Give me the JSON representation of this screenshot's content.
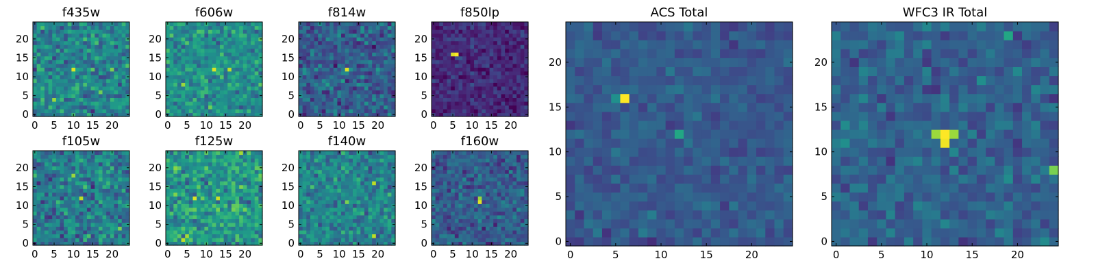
{
  "chart_data": [
    {
      "type": "heatmap",
      "title": "f435w",
      "xticks": [
        "0",
        "5",
        "10",
        "15",
        "20"
      ],
      "yticks": [
        "0",
        "5",
        "10",
        "15",
        "20"
      ],
      "grid_size": 25,
      "colormap": "viridis",
      "hotspots": [
        {
          "x": 10,
          "y": 12,
          "value": 0.95
        },
        {
          "x": 5,
          "y": 4,
          "value": 0.85
        },
        {
          "x": 20,
          "y": 12,
          "value": 0.8
        }
      ],
      "noise_mean": 0.45,
      "noise_spread": 0.35,
      "seed": 11
    },
    {
      "type": "heatmap",
      "title": "f606w",
      "xticks": [
        "0",
        "5",
        "10",
        "15",
        "20"
      ],
      "yticks": [
        "0",
        "5",
        "10",
        "15",
        "20"
      ],
      "grid_size": 25,
      "colormap": "viridis",
      "hotspots": [
        {
          "x": 12,
          "y": 12,
          "value": 0.95
        },
        {
          "x": 16,
          "y": 12,
          "value": 0.9
        },
        {
          "x": 4,
          "y": 8,
          "value": 0.85
        }
      ],
      "noise_mean": 0.5,
      "noise_spread": 0.3,
      "seed": 23
    },
    {
      "type": "heatmap",
      "title": "f814w",
      "xticks": [
        "0",
        "5",
        "10",
        "15",
        "20"
      ],
      "yticks": [
        "0",
        "5",
        "10",
        "15",
        "20"
      ],
      "grid_size": 25,
      "colormap": "viridis",
      "hotspots": [
        {
          "x": 12,
          "y": 12,
          "value": 0.95
        }
      ],
      "noise_mean": 0.3,
      "noise_spread": 0.3,
      "seed": 37
    },
    {
      "type": "heatmap",
      "title": "f850lp",
      "xticks": [
        "0",
        "5",
        "10",
        "15",
        "20"
      ],
      "yticks": [
        "0",
        "5",
        "10",
        "15",
        "20"
      ],
      "grid_size": 25,
      "colormap": "viridis",
      "hotspots": [
        {
          "x": 5,
          "y": 16,
          "value": 0.95
        },
        {
          "x": 6,
          "y": 16,
          "value": 1.0
        }
      ],
      "noise_mean": 0.12,
      "noise_spread": 0.18,
      "seed": 41
    },
    {
      "type": "heatmap",
      "title": "f105w",
      "xticks": [
        "0",
        "5",
        "10",
        "15",
        "20"
      ],
      "yticks": [
        "0",
        "5",
        "10",
        "15",
        "20"
      ],
      "grid_size": 25,
      "colormap": "viridis",
      "hotspots": [
        {
          "x": 12,
          "y": 12,
          "value": 0.9
        },
        {
          "x": 10,
          "y": 18,
          "value": 0.85
        },
        {
          "x": 22,
          "y": 4,
          "value": 0.8
        }
      ],
      "noise_mean": 0.42,
      "noise_spread": 0.35,
      "seed": 53
    },
    {
      "type": "heatmap",
      "title": "f125w",
      "xticks": [
        "0",
        "5",
        "10",
        "15",
        "20"
      ],
      "yticks": [
        "0",
        "5",
        "10",
        "15",
        "20"
      ],
      "grid_size": 25,
      "colormap": "viridis",
      "hotspots": [
        {
          "x": 7,
          "y": 12,
          "value": 0.95
        },
        {
          "x": 13,
          "y": 12,
          "value": 0.92
        },
        {
          "x": 4,
          "y": 1,
          "value": 0.9
        }
      ],
      "noise_mean": 0.55,
      "noise_spread": 0.35,
      "seed": 67
    },
    {
      "type": "heatmap",
      "title": "f140w",
      "xticks": [
        "0",
        "5",
        "10",
        "15",
        "20"
      ],
      "yticks": [
        "0",
        "5",
        "10",
        "15",
        "20"
      ],
      "grid_size": 25,
      "colormap": "viridis",
      "hotspots": [
        {
          "x": 19,
          "y": 16,
          "value": 0.9
        },
        {
          "x": 12,
          "y": 11,
          "value": 0.8
        },
        {
          "x": 19,
          "y": 2,
          "value": 0.9
        }
      ],
      "noise_mean": 0.45,
      "noise_spread": 0.3,
      "seed": 79
    },
    {
      "type": "heatmap",
      "title": "f160w",
      "xticks": [
        "0",
        "5",
        "10",
        "15",
        "20"
      ],
      "yticks": [
        "0",
        "5",
        "10",
        "15",
        "20"
      ],
      "grid_size": 25,
      "colormap": "viridis",
      "hotspots": [
        {
          "x": 12,
          "y": 11,
          "value": 0.95
        },
        {
          "x": 12,
          "y": 12,
          "value": 0.85
        }
      ],
      "noise_mean": 0.3,
      "noise_spread": 0.25,
      "seed": 83
    },
    {
      "type": "heatmap",
      "title": "ACS Total",
      "xticks": [
        "0",
        "5",
        "10",
        "15",
        "20"
      ],
      "yticks": [
        "0",
        "5",
        "10",
        "15",
        "20"
      ],
      "grid_size": 25,
      "colormap": "viridis",
      "hotspots": [
        {
          "x": 6,
          "y": 16,
          "value": 1.0
        },
        {
          "x": 5,
          "y": 16,
          "value": 0.5
        },
        {
          "x": 12,
          "y": 12,
          "value": 0.6
        }
      ],
      "noise_mean": 0.28,
      "noise_spread": 0.15,
      "seed": 97
    },
    {
      "type": "heatmap",
      "title": "WFC3 IR Total",
      "xticks": [
        "0",
        "5",
        "10",
        "15",
        "20"
      ],
      "yticks": [
        "0",
        "5",
        "10",
        "15",
        "20"
      ],
      "grid_size": 25,
      "colormap": "viridis",
      "hotspots": [
        {
          "x": 12,
          "y": 12,
          "value": 1.0
        },
        {
          "x": 12,
          "y": 11,
          "value": 0.98
        },
        {
          "x": 11,
          "y": 12,
          "value": 0.85
        },
        {
          "x": 13,
          "y": 12,
          "value": 0.85
        },
        {
          "x": 24,
          "y": 8,
          "value": 0.8
        },
        {
          "x": 19,
          "y": 23,
          "value": 0.6
        }
      ],
      "noise_mean": 0.32,
      "noise_spread": 0.2,
      "seed": 101
    }
  ]
}
